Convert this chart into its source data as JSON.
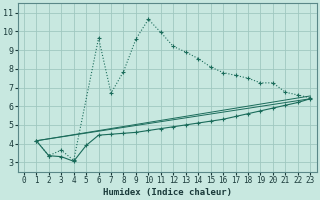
{
  "xlabel": "Humidex (Indice chaleur)",
  "xlim": [
    -0.5,
    23.5
  ],
  "ylim": [
    2.5,
    11.5
  ],
  "xticks": [
    0,
    1,
    2,
    3,
    4,
    5,
    6,
    7,
    8,
    9,
    10,
    11,
    12,
    13,
    14,
    15,
    16,
    17,
    18,
    19,
    20,
    21,
    22,
    23
  ],
  "yticks": [
    3,
    4,
    5,
    6,
    7,
    8,
    9,
    10,
    11
  ],
  "bg_color": "#c8e8e0",
  "grid_color": "#a0c8c0",
  "line_color": "#1a6b5a",
  "curve1_x": [
    1,
    2,
    3,
    4,
    6,
    7,
    8,
    9,
    10,
    11,
    12,
    13,
    14,
    15,
    16,
    17,
    18,
    19,
    20,
    21,
    22,
    23
  ],
  "curve1_y": [
    4.15,
    3.35,
    3.65,
    3.1,
    9.65,
    6.7,
    7.85,
    9.6,
    10.65,
    9.95,
    9.2,
    8.9,
    8.55,
    8.1,
    7.8,
    7.65,
    7.5,
    7.25,
    7.25,
    6.75,
    6.6,
    6.45
  ],
  "curve2_x": [
    1,
    2,
    3,
    4,
    5,
    6,
    7,
    8,
    9,
    10,
    11,
    12,
    13,
    14,
    15,
    16,
    17,
    18,
    19,
    20,
    21,
    22,
    23
  ],
  "curve2_y": [
    4.15,
    3.35,
    3.3,
    3.05,
    3.9,
    4.45,
    4.5,
    4.55,
    4.6,
    4.7,
    4.8,
    4.9,
    5.0,
    5.1,
    5.2,
    5.3,
    5.45,
    5.6,
    5.75,
    5.9,
    6.05,
    6.2,
    6.4
  ],
  "line1_x": [
    1,
    23
  ],
  "line1_y": [
    4.15,
    6.55
  ],
  "line2_x": [
    1,
    23
  ],
  "line2_y": [
    4.15,
    6.4
  ]
}
